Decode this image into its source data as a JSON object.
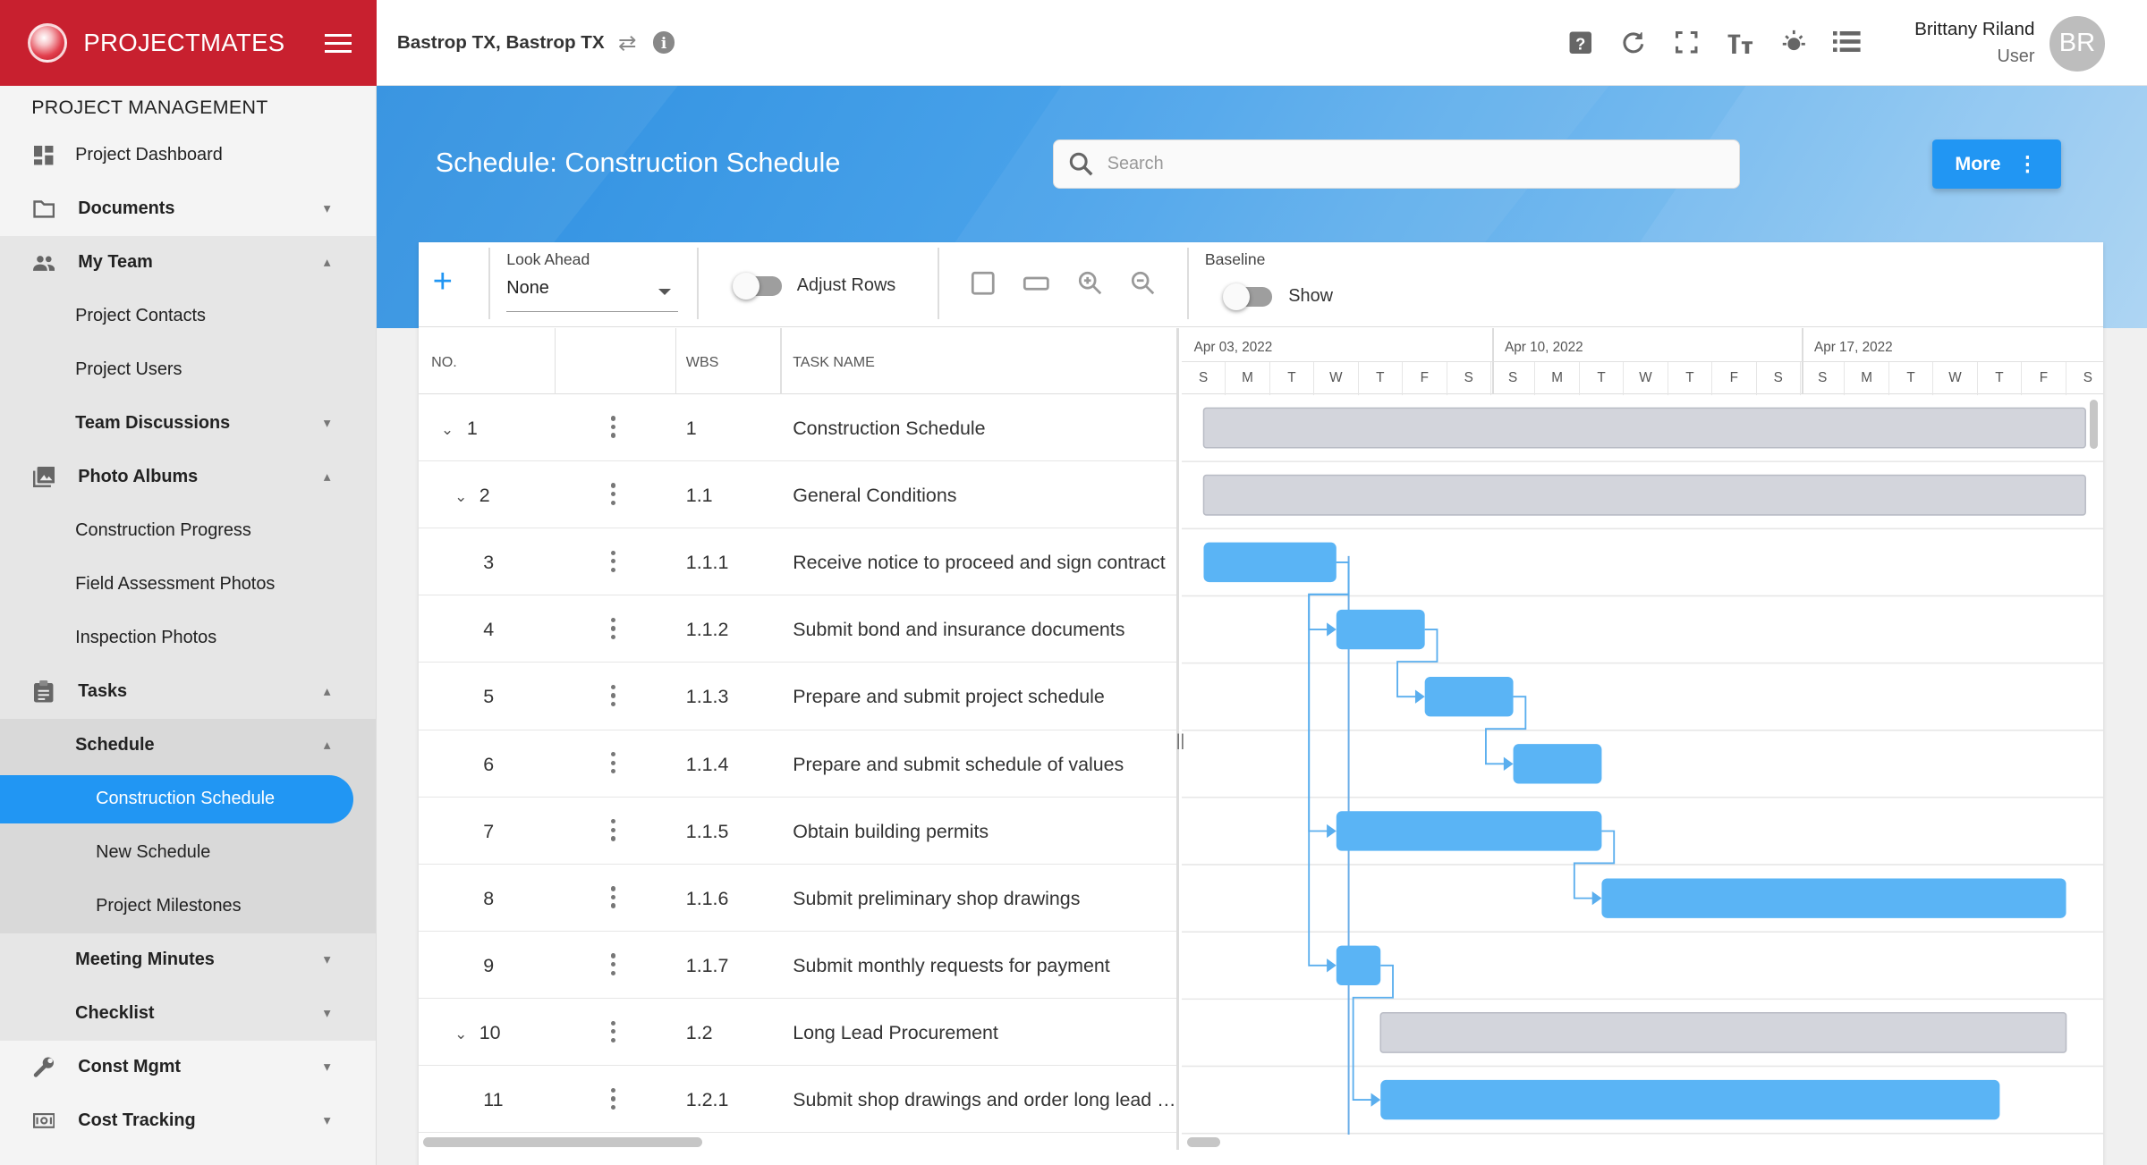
{
  "brand": {
    "name": "PROJECTMATES"
  },
  "topbar": {
    "project": "Bastrop TX, Bastrop TX",
    "user_name": "Brittany Riland",
    "user_role": "User",
    "avatar_initials": "BR"
  },
  "sidebar": {
    "header": "PROJECT MANAGEMENT",
    "items": [
      {
        "label": "Project Dashboard",
        "icon": "dashboard-icon"
      },
      {
        "label": "Documents",
        "icon": "folder-icon",
        "expanded": false
      },
      {
        "label": "My Team",
        "icon": "people-icon",
        "expanded": true
      },
      {
        "label": "Project Contacts"
      },
      {
        "label": "Project Users"
      },
      {
        "label": "Team Discussions",
        "expanded": false
      },
      {
        "label": "Photo Albums",
        "icon": "photo-icon",
        "expanded": true
      },
      {
        "label": "Construction Progress"
      },
      {
        "label": "Field Assessment Photos"
      },
      {
        "label": "Inspection Photos"
      },
      {
        "label": "Tasks",
        "icon": "clipboard-icon",
        "expanded": true
      },
      {
        "label": "Schedule",
        "expanded": true
      },
      {
        "label": "Construction Schedule",
        "active": true
      },
      {
        "label": "New Schedule"
      },
      {
        "label": "Project Milestones"
      },
      {
        "label": "Meeting Minutes",
        "expanded": false
      },
      {
        "label": "Checklist",
        "expanded": false
      },
      {
        "label": "Const Mgmt",
        "icon": "wrench-icon",
        "expanded": false
      },
      {
        "label": "Cost Tracking",
        "icon": "money-icon",
        "expanded": false
      }
    ]
  },
  "hero": {
    "title": "Schedule: Construction Schedule",
    "search_placeholder": "Search",
    "more_label": "More"
  },
  "toolbar": {
    "look_ahead_label": "Look Ahead",
    "look_ahead_value": "None",
    "adjust_rows_label": "Adjust Rows",
    "adjust_rows_on": false,
    "baseline_label": "Baseline",
    "show_label": "Show",
    "baseline_show_on": false
  },
  "grid": {
    "headers": {
      "no": "NO.",
      "wbs": "WBS",
      "task": "TASK NAME"
    },
    "rows": [
      {
        "no": "1",
        "wbs": "1",
        "task": "Construction Schedule",
        "expandable": true,
        "level": 0
      },
      {
        "no": "2",
        "wbs": "1.1",
        "task": "General Conditions",
        "expandable": true,
        "level": 1
      },
      {
        "no": "3",
        "wbs": "1.1.1",
        "task": "Receive notice to proceed and sign contract",
        "level": 2
      },
      {
        "no": "4",
        "wbs": "1.1.2",
        "task": "Submit bond and insurance documents",
        "level": 2
      },
      {
        "no": "5",
        "wbs": "1.1.3",
        "task": "Prepare and submit project schedule",
        "level": 2
      },
      {
        "no": "6",
        "wbs": "1.1.4",
        "task": "Prepare and submit schedule of values",
        "level": 2
      },
      {
        "no": "7",
        "wbs": "1.1.5",
        "task": "Obtain building permits",
        "level": 2
      },
      {
        "no": "8",
        "wbs": "1.1.6",
        "task": "Submit preliminary shop drawings",
        "level": 2
      },
      {
        "no": "9",
        "wbs": "1.1.7",
        "task": "Submit monthly requests for payment",
        "level": 2
      },
      {
        "no": "10",
        "wbs": "1.2",
        "task": "Long Lead Procurement",
        "expandable": true,
        "level": 1
      },
      {
        "no": "11",
        "wbs": "1.2.1",
        "task": "Submit shop drawings and order long lead items",
        "level": 2
      }
    ]
  },
  "gantt": {
    "weeks": [
      "Apr 03, 2022",
      "Apr 10, 2022",
      "Apr 17, 2022"
    ],
    "day_letters": [
      "S",
      "M",
      "T",
      "W",
      "T",
      "F",
      "S",
      "S",
      "M",
      "T",
      "W",
      "T",
      "F",
      "S",
      "S",
      "M",
      "T",
      "W",
      "T",
      "F",
      "S"
    ],
    "bars": [
      {
        "row": 0,
        "start_day": 1,
        "days": 20.5,
        "summary": true
      },
      {
        "row": 1,
        "start_day": 1,
        "days": 20.5,
        "summary": true
      },
      {
        "row": 2,
        "start_day": 1,
        "days": 3,
        "summary": false
      },
      {
        "row": 3,
        "start_day": 4,
        "days": 2,
        "summary": false
      },
      {
        "row": 4,
        "start_day": 6,
        "days": 2,
        "summary": false
      },
      {
        "row": 5,
        "start_day": 8,
        "days": 2,
        "summary": false
      },
      {
        "row": 6,
        "start_day": 4,
        "days": 6,
        "summary": false
      },
      {
        "row": 7,
        "start_day": 10,
        "days": 10.5,
        "summary": false
      },
      {
        "row": 8,
        "start_day": 4,
        "days": 1,
        "summary": false
      },
      {
        "row": 9,
        "start_day": 5,
        "days": 15.5,
        "summary": true
      },
      {
        "row": 10,
        "start_day": 5,
        "days": 14,
        "summary": false
      }
    ],
    "links": [
      {
        "from": 2,
        "to": 3
      },
      {
        "from": 3,
        "to": 4
      },
      {
        "from": 4,
        "to": 5
      },
      {
        "from": 2,
        "to": 6
      },
      {
        "from": 6,
        "to": 7
      },
      {
        "from": 2,
        "to": 8
      },
      {
        "from": 8,
        "to": 10
      }
    ],
    "colors": {
      "task": "#5ab4f5",
      "summary": "#d3d5dc",
      "link": "#5aaeee"
    }
  }
}
